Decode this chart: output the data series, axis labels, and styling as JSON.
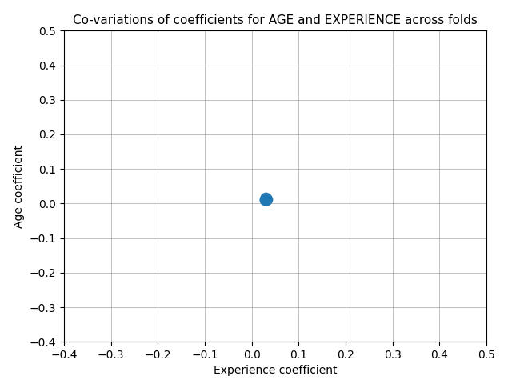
{
  "title": "Co-variations of coefficients for AGE and EXPERIENCE across folds",
  "xlabel": "Experience coefficient",
  "ylabel": "Age coefficient",
  "xlim": [
    -0.4,
    0.5
  ],
  "ylim": [
    -0.4,
    0.5
  ],
  "xticks": [
    -0.4,
    -0.3,
    -0.2,
    -0.1,
    0.0,
    0.1,
    0.2,
    0.3,
    0.4,
    0.5
  ],
  "yticks": [
    -0.4,
    -0.3,
    -0.2,
    -0.1,
    0.0,
    0.1,
    0.2,
    0.3,
    0.4,
    0.5
  ],
  "points_x": [
    0.027,
    0.029,
    0.031,
    0.03,
    0.028,
    0.032,
    0.033,
    0.029,
    0.03,
    0.031
  ],
  "points_y": [
    0.012,
    0.015,
    0.01,
    0.013,
    0.011,
    0.014,
    0.012,
    0.016,
    0.013,
    0.011
  ],
  "point_color": "#1f77b4",
  "point_size": 80,
  "alpha": 0.9,
  "grid": true,
  "background_color": "#ffffff",
  "title_fontsize": 11,
  "label_fontsize": 10,
  "tick_fontsize": 10
}
